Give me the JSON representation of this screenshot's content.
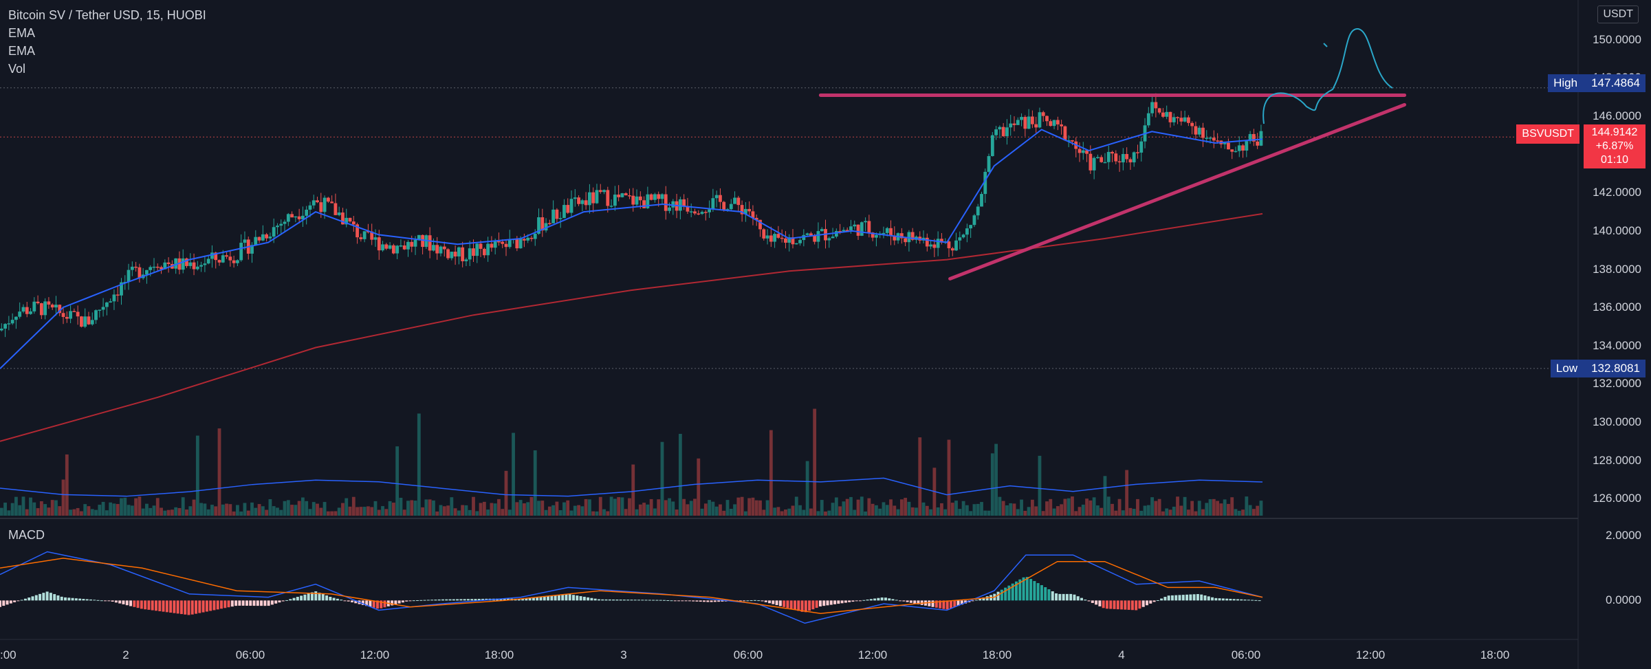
{
  "legend": {
    "title": "Bitcoin SV / Tether USD, 15, HUOBI",
    "ema1": "EMA",
    "ema2": "EMA",
    "vol": "Vol",
    "macd": "MACD"
  },
  "price_axis": {
    "unit": "USDT",
    "ticks": [
      "150.0000",
      "148.0000",
      "146.0000",
      "144.0000",
      "142.0000",
      "140.0000",
      "138.0000",
      "136.0000",
      "134.0000",
      "132.0000",
      "130.0000",
      "128.0000",
      "126.0000"
    ]
  },
  "macd_axis": {
    "ticks": [
      "2.0000",
      "0.0000"
    ]
  },
  "time_axis": {
    "ticks": [
      ":00",
      "2",
      "06:00",
      "12:00",
      "18:00",
      "3",
      "06:00",
      "12:00",
      "18:00",
      "4",
      "06:00",
      "12:00",
      "18:00"
    ]
  },
  "markers": {
    "high_label": "High",
    "high_value": "147.4864",
    "low_label": "Low",
    "low_value": "132.8081",
    "symbol": "BSVUSDT",
    "last_price": "144.9142",
    "change": "+6.87%",
    "countdown": "01:10"
  },
  "colors": {
    "background": "#131722",
    "up": "#26a69a",
    "down": "#ef5350",
    "ema_fast": "#2962ff",
    "ema_slow": "#b22833",
    "trendline": "#c2336b",
    "drawing": "#2aa7c9",
    "macd_line": "#2962ff",
    "signal_line": "#ff6d00"
  },
  "chart_data": {
    "type": "candlestick",
    "symbol": "Bitcoin SV / Tether USD",
    "interval": "15",
    "exchange": "HUOBI",
    "ylim": [
      125.0,
      151.0
    ],
    "high": 147.4864,
    "low": 132.8081,
    "last": 144.9142,
    "close_path": [
      {
        "t": 0,
        "p": 134.8
      },
      {
        "t": 10,
        "p": 135.8
      },
      {
        "t": 25,
        "p": 136.0
      },
      {
        "t": 40,
        "p": 135.6
      },
      {
        "t": 55,
        "p": 135.2
      },
      {
        "t": 70,
        "p": 136.6
      },
      {
        "t": 85,
        "p": 137.8
      },
      {
        "t": 100,
        "p": 138.4
      },
      {
        "t": 115,
        "p": 138.2
      },
      {
        "t": 130,
        "p": 138.4
      },
      {
        "t": 150,
        "p": 138.8
      },
      {
        "t": 170,
        "p": 140.0
      },
      {
        "t": 185,
        "p": 140.8
      },
      {
        "t": 200,
        "p": 141.6
      },
      {
        "t": 215,
        "p": 140.9
      },
      {
        "t": 230,
        "p": 139.6
      },
      {
        "t": 250,
        "p": 139.2
      },
      {
        "t": 270,
        "p": 139.4
      },
      {
        "t": 290,
        "p": 138.7
      },
      {
        "t": 310,
        "p": 139.1
      },
      {
        "t": 325,
        "p": 139.3
      },
      {
        "t": 345,
        "p": 140.5
      },
      {
        "t": 365,
        "p": 141.4
      },
      {
        "t": 380,
        "p": 141.8
      },
      {
        "t": 400,
        "p": 141.6
      },
      {
        "t": 420,
        "p": 141.5
      },
      {
        "t": 440,
        "p": 141.3
      },
      {
        "t": 460,
        "p": 141.5
      },
      {
        "t": 475,
        "p": 141.1
      },
      {
        "t": 485,
        "p": 139.3
      },
      {
        "t": 500,
        "p": 139.6
      },
      {
        "t": 515,
        "p": 139.7
      },
      {
        "t": 530,
        "p": 140.0
      },
      {
        "t": 545,
        "p": 140.2
      },
      {
        "t": 560,
        "p": 139.9
      },
      {
        "t": 575,
        "p": 139.7
      },
      {
        "t": 590,
        "p": 139.5
      },
      {
        "t": 600,
        "p": 139.3
      },
      {
        "t": 610,
        "p": 139.6
      },
      {
        "t": 620,
        "p": 141.2
      },
      {
        "t": 630,
        "p": 145.0
      },
      {
        "t": 645,
        "p": 145.6
      },
      {
        "t": 660,
        "p": 145.8
      },
      {
        "t": 675,
        "p": 145.1
      },
      {
        "t": 690,
        "p": 143.5
      },
      {
        "t": 705,
        "p": 143.8
      },
      {
        "t": 720,
        "p": 144.0
      },
      {
        "t": 728,
        "p": 146.5
      },
      {
        "t": 745,
        "p": 145.8
      },
      {
        "t": 760,
        "p": 145.4
      },
      {
        "t": 775,
        "p": 144.2
      },
      {
        "t": 790,
        "p": 144.6
      },
      {
        "t": 800,
        "p": 144.9
      }
    ],
    "ema_fast": [
      {
        "t": 0,
        "p": 132.8
      },
      {
        "t": 40,
        "p": 136.0
      },
      {
        "t": 80,
        "p": 137.3
      },
      {
        "t": 120,
        "p": 138.5
      },
      {
        "t": 170,
        "p": 139.4
      },
      {
        "t": 200,
        "p": 141.0
      },
      {
        "t": 240,
        "p": 139.8
      },
      {
        "t": 290,
        "p": 139.3
      },
      {
        "t": 330,
        "p": 139.6
      },
      {
        "t": 370,
        "p": 141.0
      },
      {
        "t": 420,
        "p": 141.4
      },
      {
        "t": 470,
        "p": 141.0
      },
      {
        "t": 500,
        "p": 139.6
      },
      {
        "t": 540,
        "p": 140.0
      },
      {
        "t": 600,
        "p": 139.4
      },
      {
        "t": 630,
        "p": 143.4
      },
      {
        "t": 660,
        "p": 145.3
      },
      {
        "t": 690,
        "p": 144.2
      },
      {
        "t": 730,
        "p": 145.2
      },
      {
        "t": 770,
        "p": 144.6
      },
      {
        "t": 800,
        "p": 144.8
      }
    ],
    "ema_slow": [
      {
        "t": 0,
        "p": 129.0
      },
      {
        "t": 100,
        "p": 131.3
      },
      {
        "t": 200,
        "p": 133.9
      },
      {
        "t": 300,
        "p": 135.6
      },
      {
        "t": 400,
        "p": 136.9
      },
      {
        "t": 500,
        "p": 137.9
      },
      {
        "t": 600,
        "p": 138.5
      },
      {
        "t": 700,
        "p": 139.6
      },
      {
        "t": 800,
        "p": 140.9
      }
    ],
    "trendlines": [
      {
        "name": "resistance",
        "from": {
          "t": 520,
          "p": 147.1
        },
        "to": {
          "t": 890,
          "p": 147.1
        }
      },
      {
        "name": "support",
        "from": {
          "t": 602,
          "p": 137.5
        },
        "to": {
          "t": 890,
          "p": 146.6
        }
      }
    ],
    "macd_range": [
      -1.2,
      2.4
    ],
    "macd_line": [
      {
        "t": 0,
        "p": 0.8
      },
      {
        "t": 30,
        "p": 1.5
      },
      {
        "t": 70,
        "p": 1.1
      },
      {
        "t": 120,
        "p": 0.2
      },
      {
        "t": 170,
        "p": 0.1
      },
      {
        "t": 200,
        "p": 0.5
      },
      {
        "t": 240,
        "p": -0.3
      },
      {
        "t": 280,
        "p": -0.1
      },
      {
        "t": 330,
        "p": 0.1
      },
      {
        "t": 360,
        "p": 0.4
      },
      {
        "t": 420,
        "p": 0.2
      },
      {
        "t": 480,
        "p": -0.1
      },
      {
        "t": 510,
        "p": -0.7
      },
      {
        "t": 560,
        "p": -0.1
      },
      {
        "t": 600,
        "p": -0.3
      },
      {
        "t": 630,
        "p": 0.3
      },
      {
        "t": 650,
        "p": 1.4
      },
      {
        "t": 680,
        "p": 1.4
      },
      {
        "t": 720,
        "p": 0.5
      },
      {
        "t": 760,
        "p": 0.6
      },
      {
        "t": 800,
        "p": 0.1
      }
    ],
    "signal_line": [
      {
        "t": 0,
        "p": 1.0
      },
      {
        "t": 40,
        "p": 1.3
      },
      {
        "t": 90,
        "p": 1.0
      },
      {
        "t": 150,
        "p": 0.3
      },
      {
        "t": 210,
        "p": 0.2
      },
      {
        "t": 260,
        "p": -0.2
      },
      {
        "t": 320,
        "p": 0.0
      },
      {
        "t": 380,
        "p": 0.3
      },
      {
        "t": 450,
        "p": 0.1
      },
      {
        "t": 520,
        "p": -0.4
      },
      {
        "t": 580,
        "p": -0.1
      },
      {
        "t": 630,
        "p": 0.1
      },
      {
        "t": 670,
        "p": 1.2
      },
      {
        "t": 700,
        "p": 1.2
      },
      {
        "t": 740,
        "p": 0.4
      },
      {
        "t": 770,
        "p": 0.4
      },
      {
        "t": 800,
        "p": 0.1
      }
    ]
  }
}
